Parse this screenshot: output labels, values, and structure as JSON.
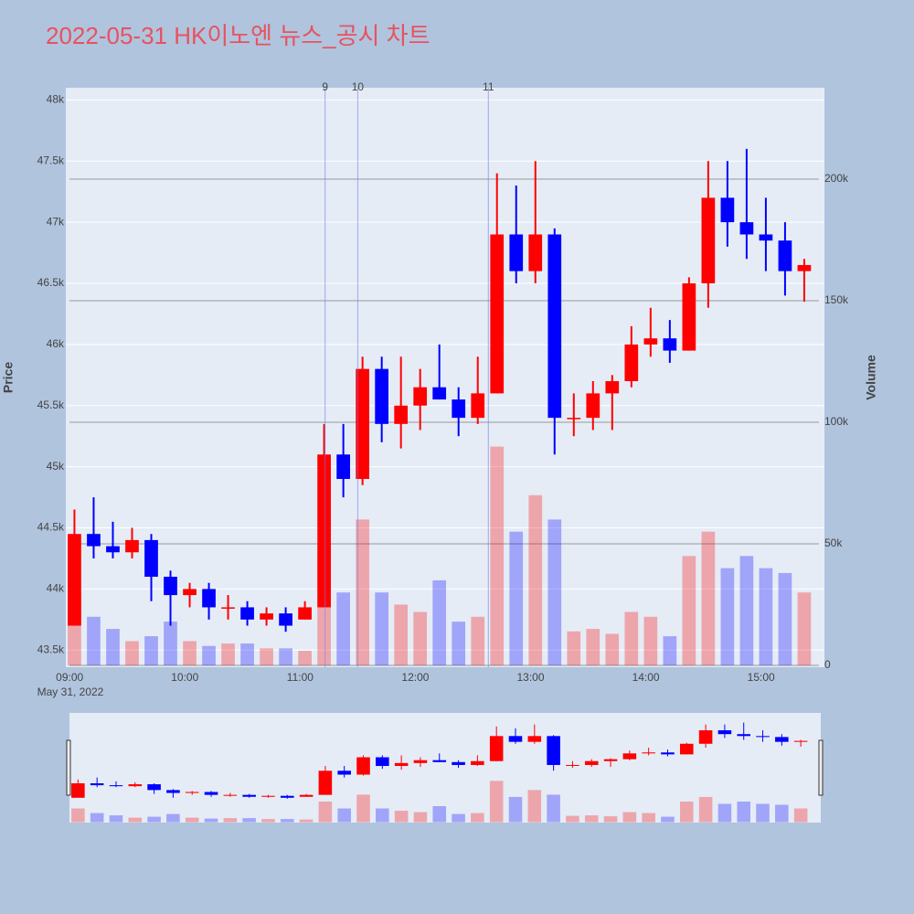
{
  "chart_data": {
    "type": "candlestick",
    "title": "2022-05-31 HK이노엔 뉴스_공시 차트",
    "x": [
      "09:00",
      "09:10",
      "09:20",
      "09:30",
      "09:40",
      "09:50",
      "10:00",
      "10:10",
      "10:20",
      "10:30",
      "10:40",
      "10:50",
      "11:00",
      "11:10",
      "11:20",
      "11:30",
      "11:40",
      "11:50",
      "12:00",
      "12:10",
      "12:20",
      "12:30",
      "12:40",
      "12:50",
      "13:00",
      "13:10",
      "13:20",
      "13:30",
      "13:40",
      "13:50",
      "14:00",
      "14:10",
      "14:20",
      "14:30",
      "14:40",
      "14:50",
      "15:00",
      "15:10",
      "15:20"
    ],
    "open": [
      43700,
      44450,
      44350,
      44300,
      44400,
      44100,
      43950,
      44000,
      43850,
      43850,
      43750,
      43800,
      43750,
      43850,
      45100,
      44900,
      45800,
      45350,
      45500,
      45650,
      45550,
      45400,
      45600,
      46900,
      46600,
      46900,
      45400,
      45400,
      45600,
      45700,
      46000,
      46050,
      45950,
      46500,
      47200,
      47000,
      46900,
      46850,
      46600
    ],
    "high": [
      44650,
      44750,
      44550,
      44500,
      44450,
      44150,
      44050,
      44050,
      43950,
      43900,
      43850,
      43850,
      43900,
      45350,
      45350,
      45900,
      45900,
      45900,
      45800,
      46000,
      45650,
      45900,
      47400,
      47300,
      47500,
      46950,
      45600,
      45700,
      45750,
      46150,
      46300,
      46200,
      46550,
      47500,
      47500,
      47600,
      47200,
      47000,
      46700
    ],
    "low": [
      43700,
      44250,
      44250,
      44250,
      43900,
      43700,
      43850,
      43750,
      43750,
      43700,
      43700,
      43650,
      43750,
      43850,
      44750,
      44850,
      45200,
      45150,
      45300,
      45550,
      45250,
      45350,
      45600,
      46500,
      46500,
      45100,
      45250,
      45300,
      45300,
      45650,
      45900,
      45850,
      45950,
      46300,
      46800,
      46700,
      46600,
      46400,
      46350
    ],
    "close": [
      44450,
      44350,
      44300,
      44400,
      44100,
      43950,
      44000,
      43850,
      43850,
      43750,
      43800,
      43700,
      43850,
      45100,
      44900,
      45800,
      45350,
      45500,
      45650,
      45550,
      45400,
      45600,
      46900,
      46600,
      46900,
      45400,
      45400,
      45600,
      45700,
      46000,
      46050,
      45950,
      46500,
      47200,
      47000,
      46900,
      46850,
      46600,
      46650
    ],
    "volume": [
      30000,
      20000,
      15000,
      10000,
      12000,
      18000,
      10000,
      8000,
      9000,
      9000,
      7000,
      7000,
      6000,
      45000,
      30000,
      60000,
      30000,
      25000,
      22000,
      35000,
      18000,
      20000,
      90000,
      55000,
      70000,
      60000,
      14000,
      15000,
      13000,
      22000,
      20000,
      12000,
      45000,
      55000,
      40000,
      45000,
      40000,
      38000,
      30000
    ],
    "increasing_color": "#ff0000",
    "decreasing_color": "#0000ff",
    "xlim": [
      "08:58",
      "15:33"
    ],
    "xticks": [
      "09:00",
      "10:00",
      "11:00",
      "12:00",
      "13:00",
      "14:00",
      "15:00"
    ],
    "x_date_label": "May 31, 2022",
    "ylim": [
      43360,
      48100
    ],
    "yticks": [
      {
        "value": 43500,
        "label": "43.5k"
      },
      {
        "value": 44000,
        "label": "44k"
      },
      {
        "value": 44500,
        "label": "44.5k"
      },
      {
        "value": 45000,
        "label": "45k"
      },
      {
        "value": 45500,
        "label": "45.5k"
      },
      {
        "value": 46000,
        "label": "46k"
      },
      {
        "value": 46500,
        "label": "46.5k"
      },
      {
        "value": 47000,
        "label": "47k"
      },
      {
        "value": 47500,
        "label": "47.5k"
      },
      {
        "value": 48000,
        "label": "48k"
      }
    ],
    "y2lim": [
      -750,
      237600
    ],
    "y2ticks": [
      0,
      {
        "value": 50000,
        "label": "50k"
      },
      {
        "value": 100000,
        "label": "100k"
      },
      {
        "value": 150000,
        "label": "150k"
      },
      {
        "value": 200000,
        "label": "200k"
      }
    ],
    "ylabel": "Price",
    "y2label": "Volume",
    "annotations": [
      {
        "x": "11:13",
        "text": "9"
      },
      {
        "x": "11:30",
        "text": "10"
      },
      {
        "x": "12:38",
        "text": "11"
      }
    ]
  }
}
